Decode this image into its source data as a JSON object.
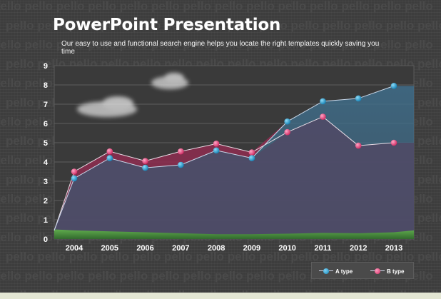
{
  "slide": {
    "title": "PowerPoint Presentation",
    "subtitle": "Our easy to use and functional search engine helps you locate the right templates quickly saving you time",
    "watermark_word": "pello"
  },
  "chart_data": {
    "type": "line",
    "title": "",
    "xlabel": "",
    "ylabel": "",
    "categories": [
      "2004",
      "2005",
      "2006",
      "2007",
      "2008",
      "2009",
      "2010",
      "2011",
      "2012",
      "2013"
    ],
    "yticks": [
      "0",
      "1",
      "2",
      "3",
      "4",
      "5",
      "6",
      "7",
      "8",
      "9"
    ],
    "ylim": [
      0,
      9
    ],
    "grid": true,
    "legend_position": "bottom-right",
    "series": [
      {
        "name": "A type",
        "values": [
          3.15,
          4.2,
          3.7,
          3.85,
          4.6,
          4.2,
          6.1,
          7.15,
          7.3,
          7.95
        ],
        "color": "#1f8fc0"
      },
      {
        "name": "B type",
        "values": [
          3.5,
          4.55,
          4.05,
          4.55,
          4.95,
          4.5,
          5.55,
          6.35,
          4.85,
          5.0
        ],
        "color": "#e0336f"
      }
    ],
    "baseline_band_color": "#4c9a3c"
  }
}
